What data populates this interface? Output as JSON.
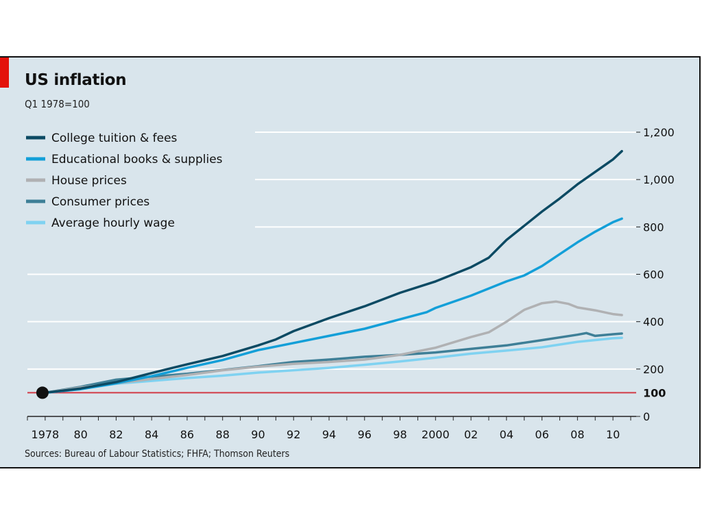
{
  "chart_data": {
    "type": "line",
    "title": "US inflation",
    "subtitle": "Q1 1978=100",
    "source": "Sources: Bureau of Labour Statistics; FHFA; Thomson Reuters",
    "ylim": [
      0,
      1200
    ],
    "yticks": [
      {
        "value": 0,
        "label": "0"
      },
      {
        "value": 200,
        "label": "200"
      },
      {
        "value": 400,
        "label": "400"
      },
      {
        "value": 600,
        "label": "600"
      },
      {
        "value": 800,
        "label": "800"
      },
      {
        "value": 1000,
        "label": "1,000"
      },
      {
        "value": 1200,
        "label": "1,200"
      }
    ],
    "xlim": [
      1977,
      2011
    ],
    "xticks": [
      {
        "value": 1978,
        "label": "1978"
      },
      {
        "value": 1980,
        "label": "80"
      },
      {
        "value": 1982,
        "label": "82"
      },
      {
        "value": 1984,
        "label": "84"
      },
      {
        "value": 1986,
        "label": "86"
      },
      {
        "value": 1988,
        "label": "88"
      },
      {
        "value": 1990,
        "label": "90"
      },
      {
        "value": 1992,
        "label": "92"
      },
      {
        "value": 1994,
        "label": "94"
      },
      {
        "value": 1996,
        "label": "96"
      },
      {
        "value": 1998,
        "label": "98"
      },
      {
        "value": 2000,
        "label": "2000"
      },
      {
        "value": 2002,
        "label": "02"
      },
      {
        "value": 2004,
        "label": "04"
      },
      {
        "value": 2006,
        "label": "06"
      },
      {
        "value": 2008,
        "label": "08"
      },
      {
        "value": 2010,
        "label": "10"
      }
    ],
    "reference_line": {
      "value": 100,
      "label": "100",
      "color": "#d23a45"
    },
    "base_marker": {
      "x": 1978,
      "y": 100
    },
    "grid": true,
    "legend_position": "top-left",
    "series": [
      {
        "name": "College tuition & fees",
        "color": "#0c4a63",
        "points": [
          [
            1978,
            100
          ],
          [
            1980,
            118
          ],
          [
            1982,
            145
          ],
          [
            1984,
            183
          ],
          [
            1986,
            220
          ],
          [
            1988,
            255
          ],
          [
            1990,
            300
          ],
          [
            1991,
            325
          ],
          [
            1992,
            360
          ],
          [
            1994,
            415
          ],
          [
            1996,
            465
          ],
          [
            1998,
            522
          ],
          [
            2000,
            570
          ],
          [
            2002,
            630
          ],
          [
            2003,
            670
          ],
          [
            2004,
            745
          ],
          [
            2006,
            865
          ],
          [
            2007,
            920
          ],
          [
            2008,
            980
          ],
          [
            2010,
            1085
          ],
          [
            2010.5,
            1120
          ]
        ]
      },
      {
        "name": "Educational books & supplies",
        "color": "#139fd8",
        "points": [
          [
            1978,
            100
          ],
          [
            1980,
            115
          ],
          [
            1982,
            140
          ],
          [
            1984,
            170
          ],
          [
            1986,
            205
          ],
          [
            1988,
            238
          ],
          [
            1990,
            280
          ],
          [
            1992,
            310
          ],
          [
            1994,
            340
          ],
          [
            1996,
            370
          ],
          [
            1998,
            410
          ],
          [
            1999.5,
            440
          ],
          [
            2000,
            458
          ],
          [
            2002,
            510
          ],
          [
            2004,
            570
          ],
          [
            2005,
            595
          ],
          [
            2006,
            635
          ],
          [
            2007,
            685
          ],
          [
            2008,
            735
          ],
          [
            2009,
            780
          ],
          [
            2010,
            820
          ],
          [
            2010.5,
            835
          ]
        ]
      },
      {
        "name": "House prices",
        "color": "#b0b1b3",
        "points": [
          [
            1978,
            100
          ],
          [
            1980,
            122
          ],
          [
            1982,
            140
          ],
          [
            1984,
            158
          ],
          [
            1986,
            175
          ],
          [
            1988,
            195
          ],
          [
            1990,
            210
          ],
          [
            1992,
            222
          ],
          [
            1994,
            230
          ],
          [
            1996,
            240
          ],
          [
            1998,
            260
          ],
          [
            2000,
            290
          ],
          [
            2002,
            335
          ],
          [
            2003,
            355
          ],
          [
            2004,
            400
          ],
          [
            2005,
            450
          ],
          [
            2006,
            478
          ],
          [
            2006.8,
            485
          ],
          [
            2007.5,
            475
          ],
          [
            2008,
            460
          ],
          [
            2009,
            448
          ],
          [
            2010,
            432
          ],
          [
            2010.5,
            428
          ]
        ]
      },
      {
        "name": "Consumer prices",
        "color": "#3e7f97",
        "points": [
          [
            1978,
            100
          ],
          [
            1980,
            125
          ],
          [
            1982,
            155
          ],
          [
            1984,
            168
          ],
          [
            1986,
            180
          ],
          [
            1988,
            196
          ],
          [
            1990,
            212
          ],
          [
            1992,
            230
          ],
          [
            1994,
            240
          ],
          [
            1996,
            252
          ],
          [
            1998,
            260
          ],
          [
            2000,
            270
          ],
          [
            2002,
            285
          ],
          [
            2004,
            300
          ],
          [
            2006,
            322
          ],
          [
            2008,
            345
          ],
          [
            2008.5,
            352
          ],
          [
            2009,
            340
          ],
          [
            2010,
            347
          ],
          [
            2010.5,
            350
          ]
        ]
      },
      {
        "name": "Average hourly wage",
        "color": "#7fd2f1",
        "points": [
          [
            1978,
            100
          ],
          [
            1980,
            115
          ],
          [
            1982,
            138
          ],
          [
            1984,
            150
          ],
          [
            1986,
            162
          ],
          [
            1988,
            172
          ],
          [
            1990,
            185
          ],
          [
            1992,
            195
          ],
          [
            1994,
            205
          ],
          [
            1996,
            218
          ],
          [
            1998,
            232
          ],
          [
            2000,
            248
          ],
          [
            2002,
            265
          ],
          [
            2004,
            278
          ],
          [
            2006,
            292
          ],
          [
            2008,
            315
          ],
          [
            2010,
            330
          ],
          [
            2010.5,
            332
          ]
        ]
      }
    ]
  }
}
